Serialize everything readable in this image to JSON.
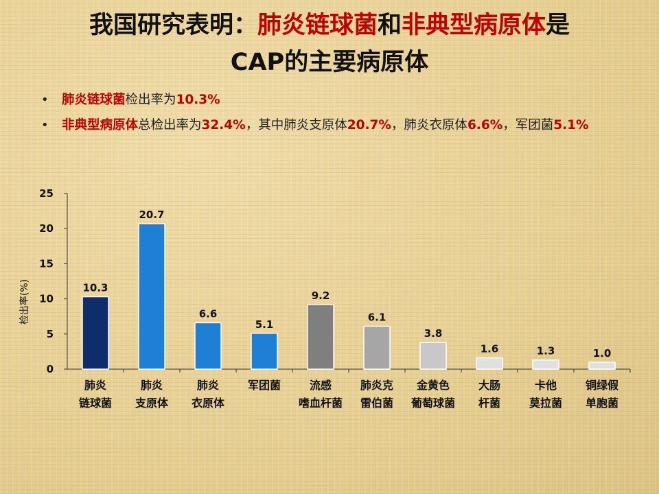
{
  "slide": {
    "title_line1": {
      "prefix": "我国研究表明：",
      "highlight1": "肺炎链球菌",
      "middle": "和",
      "highlight2": "非典型病原体",
      "suffix": "是"
    },
    "title_line2": "CAP的主要病原体",
    "bullets": [
      {
        "marker": "•",
        "parts": [
          {
            "text": "肺炎链球菌",
            "style": "red"
          },
          {
            "text": "检出率为",
            "style": "plain"
          },
          {
            "text": "10.3%",
            "style": "num"
          }
        ]
      },
      {
        "marker": "•",
        "parts": [
          {
            "text": "非典型病原体",
            "style": "red"
          },
          {
            "text": "总检出率为",
            "style": "plain"
          },
          {
            "text": "32.4%",
            "style": "num"
          },
          {
            "text": "，其中肺炎支原体",
            "style": "plain"
          },
          {
            "text": "20.7%",
            "style": "num"
          },
          {
            "text": "，肺炎衣原体",
            "style": "plain"
          },
          {
            "text": "6.6%",
            "style": "num"
          },
          {
            "text": "，军团菌",
            "style": "plain"
          },
          {
            "text": "5.1%",
            "style": "num"
          }
        ]
      }
    ]
  },
  "chart_data": {
    "type": "bar",
    "title": "",
    "xlabel": "",
    "ylabel": "检出率(%)",
    "ylim": [
      0,
      25
    ],
    "yticks": [
      0,
      5,
      10,
      15,
      20,
      25
    ],
    "grid": false,
    "categories": [
      [
        "肺炎",
        "链球菌"
      ],
      [
        "肺炎",
        "支原体"
      ],
      [
        "肺炎",
        "衣原体"
      ],
      [
        "军团菌"
      ],
      [
        "流感",
        "嗜血杆菌"
      ],
      [
        "肺炎克",
        "雷伯菌"
      ],
      [
        "金黄色",
        "葡萄球菌"
      ],
      [
        "大肠",
        "杆菌"
      ],
      [
        "卡他",
        "莫拉菌"
      ],
      [
        "铜绿假",
        "单胞菌"
      ]
    ],
    "values": [
      10.3,
      20.7,
      6.6,
      5.1,
      9.2,
      6.1,
      3.8,
      1.6,
      1.3,
      1.0
    ],
    "value_labels": [
      "10.3",
      "20.7",
      "6.6",
      "5.1",
      "9.2",
      "6.1",
      "3.8",
      "1.6",
      "1.3",
      "1.0"
    ],
    "colors": [
      "#0f2d6b",
      "#1f7fd4",
      "#1f7fd4",
      "#1f7fd4",
      "#7f7f7f",
      "#a6a6a6",
      "#c8c8c8",
      "#e0e0e0",
      "#e0e0e0",
      "#e0e0e0"
    ]
  }
}
